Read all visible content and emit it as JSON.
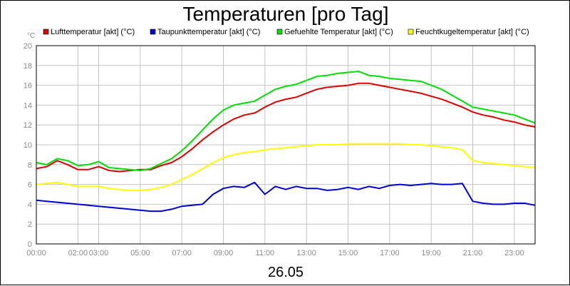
{
  "chart_data": {
    "type": "line",
    "title": "Temperaturen [pro Tag]",
    "xlabel": "26.05",
    "y_unit": "°C",
    "ylim": [
      0,
      20
    ],
    "yticks": [
      0,
      2,
      4,
      6,
      8,
      10,
      12,
      14,
      16,
      18,
      20
    ],
    "xlim": [
      0,
      24
    ],
    "xticks": [
      {
        "x": 0,
        "label": "00:00"
      },
      {
        "x": 2,
        "label": "02:00"
      },
      {
        "x": 3,
        "label": "03:00"
      },
      {
        "x": 5,
        "label": "05:00"
      },
      {
        "x": 7,
        "label": "07:00"
      },
      {
        "x": 9,
        "label": "09:00"
      },
      {
        "x": 11,
        "label": "11:00"
      },
      {
        "x": 13,
        "label": "13:00"
      },
      {
        "x": 15,
        "label": "15:00"
      },
      {
        "x": 17,
        "label": "17:00"
      },
      {
        "x": 19,
        "label": "19:00"
      },
      {
        "x": 21,
        "label": "21:00"
      },
      {
        "x": 23,
        "label": "23:00"
      }
    ],
    "grid": true,
    "legend_position": "top",
    "x": [
      0,
      0.5,
      1,
      1.5,
      2,
      2.5,
      3,
      3.5,
      4,
      4.5,
      5,
      5.5,
      6,
      6.5,
      7,
      7.5,
      8,
      8.5,
      9,
      9.5,
      10,
      10.5,
      11,
      11.5,
      12,
      12.5,
      13,
      13.5,
      14,
      14.5,
      15,
      15.5,
      16,
      16.5,
      17,
      17.5,
      18,
      18.5,
      19,
      19.5,
      20,
      20.5,
      21,
      21.5,
      22,
      22.5,
      23,
      23.5,
      24
    ],
    "series": [
      {
        "name": "Lufttemperatur [akt] (°C)",
        "color": "#e00000",
        "values": [
          7.6,
          7.8,
          8.4,
          8.0,
          7.5,
          7.5,
          7.8,
          7.4,
          7.3,
          7.4,
          7.5,
          7.5,
          7.9,
          8.2,
          8.8,
          9.6,
          10.5,
          11.3,
          12.0,
          12.6,
          13.0,
          13.2,
          13.8,
          14.3,
          14.6,
          14.8,
          15.2,
          15.6,
          15.8,
          15.9,
          16.0,
          16.2,
          16.2,
          16.0,
          15.8,
          15.6,
          15.4,
          15.2,
          14.9,
          14.6,
          14.2,
          13.8,
          13.3,
          13.0,
          12.8,
          12.5,
          12.3,
          12.0,
          11.8
        ]
      },
      {
        "name": "Taupunkttemperatur [akt] (°C)",
        "color": "#0000d8",
        "values": [
          4.4,
          4.3,
          4.2,
          4.1,
          4.0,
          3.9,
          3.8,
          3.7,
          3.6,
          3.5,
          3.4,
          3.3,
          3.3,
          3.5,
          3.8,
          3.9,
          4.0,
          5.0,
          5.6,
          5.8,
          5.7,
          6.2,
          5.0,
          5.8,
          5.5,
          5.8,
          5.6,
          5.6,
          5.4,
          5.5,
          5.7,
          5.5,
          5.8,
          5.6,
          5.9,
          6.0,
          5.9,
          6.0,
          6.1,
          6.0,
          6.0,
          6.1,
          4.3,
          4.1,
          4.0,
          4.0,
          4.1,
          4.1,
          3.9
        ]
      },
      {
        "name": "Gefuehlte Temperatur [akt] (°C)",
        "color": "#00e000",
        "values": [
          8.2,
          8.0,
          8.6,
          8.4,
          7.9,
          8.0,
          8.3,
          7.7,
          7.6,
          7.5,
          7.4,
          7.6,
          8.1,
          8.6,
          9.4,
          10.4,
          11.5,
          12.6,
          13.5,
          14.0,
          14.2,
          14.4,
          15.0,
          15.6,
          15.9,
          16.1,
          16.5,
          16.9,
          17.0,
          17.2,
          17.3,
          17.4,
          17.0,
          16.9,
          16.7,
          16.6,
          16.5,
          16.4,
          16.0,
          15.6,
          15.0,
          14.4,
          13.8,
          13.6,
          13.4,
          13.2,
          13.0,
          12.6,
          12.2
        ]
      },
      {
        "name": "Feuchtkugeltemperatur [akt] (°C)",
        "color": "#ffff00",
        "values": [
          6.0,
          6.1,
          6.2,
          6.0,
          5.8,
          5.8,
          5.8,
          5.6,
          5.5,
          5.4,
          5.4,
          5.5,
          5.7,
          6.0,
          6.5,
          7.0,
          7.6,
          8.2,
          8.7,
          9.0,
          9.2,
          9.3,
          9.5,
          9.6,
          9.7,
          9.8,
          9.9,
          10.0,
          10.0,
          10.0,
          10.1,
          10.1,
          10.1,
          10.1,
          10.1,
          10.1,
          10.0,
          10.0,
          9.9,
          9.8,
          9.7,
          9.5,
          8.4,
          8.2,
          8.1,
          8.0,
          7.9,
          7.8,
          7.7
        ]
      }
    ]
  }
}
